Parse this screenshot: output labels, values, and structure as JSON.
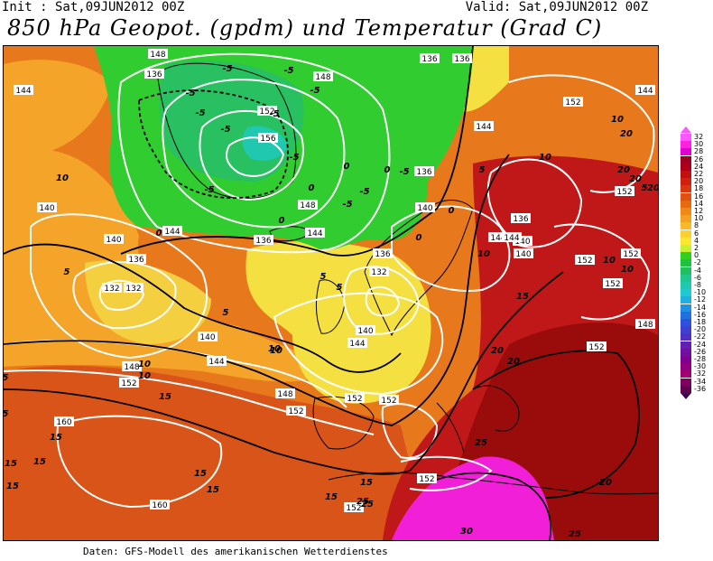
{
  "header": {
    "init": "Init : Sat,09JUN2012 00Z",
    "valid": "Valid: Sat,09JUN2012 00Z",
    "title": "850 hPa Geopot. (gpdm) und Temperatur (Grad C)"
  },
  "credit": "Daten: GFS-Modell des amerikanischen Wetterdienstes",
  "legend": {
    "entries": [
      {
        "label": "32",
        "color": "#ff55ff"
      },
      {
        "label": "30",
        "color": "#ff20e0"
      },
      {
        "label": "28",
        "color": "#e000d0"
      },
      {
        "label": "26",
        "color": "#a00020"
      },
      {
        "label": "24",
        "color": "#b00018"
      },
      {
        "label": "22",
        "color": "#c01010"
      },
      {
        "label": "20",
        "color": "#d02010"
      },
      {
        "label": "18",
        "color": "#d83810"
      },
      {
        "label": "16",
        "color": "#e05010"
      },
      {
        "label": "14",
        "color": "#e86a10"
      },
      {
        "label": "12",
        "color": "#f08818"
      },
      {
        "label": "10",
        "color": "#f4a020"
      },
      {
        "label": "8",
        "color": "#f8b828"
      },
      {
        "label": "6",
        "color": "#fcd030"
      },
      {
        "label": "4",
        "color": "#f8e830"
      },
      {
        "label": "2",
        "color": "#c8f030"
      },
      {
        "label": "0",
        "color": "#30d020"
      },
      {
        "label": "-2",
        "color": "#20c040"
      },
      {
        "label": "-4",
        "color": "#20c060"
      },
      {
        "label": "-6",
        "color": "#20c890"
      },
      {
        "label": "-8",
        "color": "#20c8b0"
      },
      {
        "label": "-10",
        "color": "#20c8d0"
      },
      {
        "label": "-12",
        "color": "#20b0e0"
      },
      {
        "label": "-14",
        "color": "#2090e0"
      },
      {
        "label": "-16",
        "color": "#2070e0"
      },
      {
        "label": "-18",
        "color": "#3050e0"
      },
      {
        "label": "-20",
        "color": "#4040d0"
      },
      {
        "label": "-22",
        "color": "#5030c0"
      },
      {
        "label": "-24",
        "color": "#6020b0"
      },
      {
        "label": "-26",
        "color": "#7010a0"
      },
      {
        "label": "-28",
        "color": "#800090"
      },
      {
        "label": "-30",
        "color": "#900080"
      },
      {
        "label": "-32",
        "color": "#a00070"
      },
      {
        "label": "-34",
        "color": "#800060"
      },
      {
        "label": "-36",
        "color": "#600050"
      }
    ],
    "top_arrow_color": "#ff55ff",
    "bottom_arrow_color": "#400050"
  },
  "map_labels": {
    "geopotential": [
      "148",
      "136",
      "136",
      "136",
      "144",
      "148",
      "152",
      "156",
      "144",
      "140",
      "136",
      "140",
      "144",
      "136",
      "132",
      "136",
      "140",
      "144",
      "148",
      "152",
      "148",
      "152",
      "152",
      "140",
      "144",
      "136",
      "132",
      "140",
      "144",
      "148",
      "152",
      "152",
      "160",
      "160",
      "152",
      "144",
      "152",
      "152",
      "152",
      "148",
      "152",
      "140",
      "152",
      "136",
      "144",
      "140",
      "144",
      "152",
      "132",
      "152"
    ],
    "temperature": [
      "-5",
      "-5",
      "-5",
      "-5",
      "-5",
      "-5",
      "-5",
      "-5",
      "-5",
      "-5",
      "-5",
      "-5",
      "0",
      "0",
      "0",
      "0",
      "0",
      "0",
      "0",
      "5",
      "5",
      "5",
      "5",
      "5",
      "5",
      "10",
      "10",
      "10",
      "10",
      "10",
      "10",
      "15",
      "15",
      "15",
      "15",
      "15",
      "15",
      "15",
      "15",
      "20",
      "20",
      "20",
      "20",
      "20",
      "25",
      "25",
      "25",
      "30",
      "10",
      "15",
      "15",
      "10",
      "5",
      "20",
      "5",
      "10",
      "10",
      "20",
      "25"
    ]
  },
  "colors": {
    "green": "#30cc30",
    "yellow": "#f4e040",
    "light_orange": "#f4a428",
    "orange": "#e8781c",
    "dark_orange": "#d85418",
    "red": "#b81010",
    "dark_red": "#900a0a",
    "magenta": "#f21fd8"
  }
}
